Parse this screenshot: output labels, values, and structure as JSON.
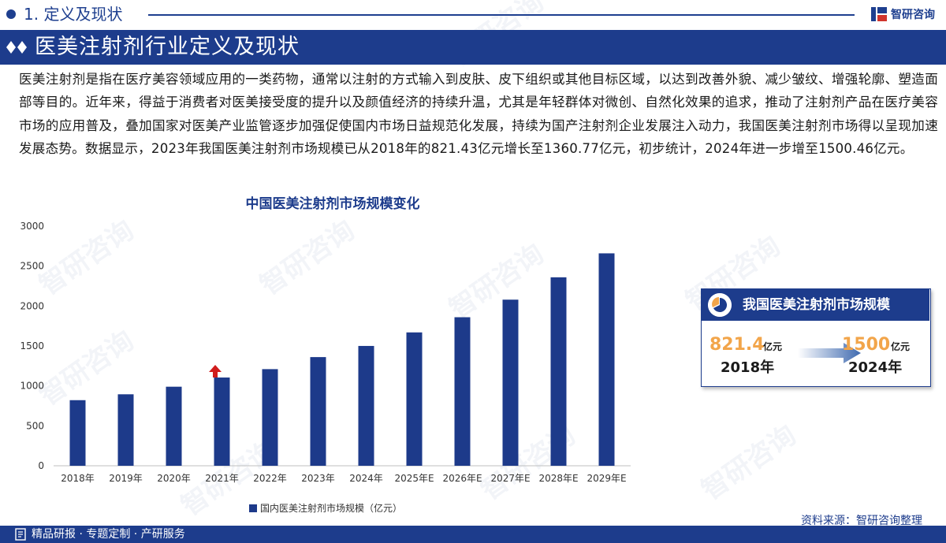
{
  "header": {
    "section_label": "1. 定义及现状",
    "logo_text": "智研咨询"
  },
  "heading": "医美注射剂行业定义及现状",
  "paragraph": "医美注射剂是指在医疗美容领域应用的一类药物，通常以注射的方式输入到皮肤、皮下组织或其他目标区域，以达到改善外貌、减少皱纹、增强轮廓、塑造面部等目的。近年来，得益于消费者对医美接受度的提升以及颜值经济的持续升温，尤其是年轻群体对微创、自然化效果的追求，推动了注射剂产品在医疗美容市场的应用普及，叠加国家对医美产业监管逐步加强促使国内市场日益规范化发展，持续为国产注射剂企业发展注入动力，我国医美注射剂市场得以呈现加速发展态势。数据显示，2023年我国医美注射剂市场规模已从2018年的821.43亿元增长至1360.77亿元，初步统计，2024年进一步增至1500.46亿元。",
  "chart_data": {
    "type": "bar",
    "title": "中国医美注射剂市场规模变化",
    "categories": [
      "2018年",
      "2019年",
      "2020年",
      "2021年",
      "2022年",
      "2023年",
      "2024年",
      "2025年E",
      "2026年E",
      "2027年E",
      "2028年E",
      "2029年E"
    ],
    "series": [
      {
        "name": "国内医美注射剂市场规模（亿元）",
        "values": [
          821.43,
          895,
          990,
          1105,
          1210,
          1360.77,
          1500.46,
          1670,
          1860,
          2080,
          2360,
          2660
        ],
        "color": "#1d3a8a"
      }
    ],
    "ylim": [
      0,
      3000
    ],
    "yticks": [
      0,
      500,
      1000,
      1500,
      2000,
      2500,
      3000
    ],
    "grid": false,
    "legend_position": "bottom"
  },
  "callout": {
    "title": "我国医美注射剂市场规模",
    "from_value": "821.4",
    "from_unit": "亿元",
    "from_year": "2018年",
    "to_value": "1500",
    "to_unit": "亿元",
    "to_year": "2024年",
    "trend": "up"
  },
  "source": "资料来源：智研咨询整理",
  "footer": "精品研报 · 专题定制 · 产研服务",
  "watermark": "智研咨询",
  "colors": {
    "brand": "#1d3c8c",
    "bar": "#1d3a8a",
    "highlight": "#f2a54a",
    "up_arrow": "#d01c1c"
  }
}
